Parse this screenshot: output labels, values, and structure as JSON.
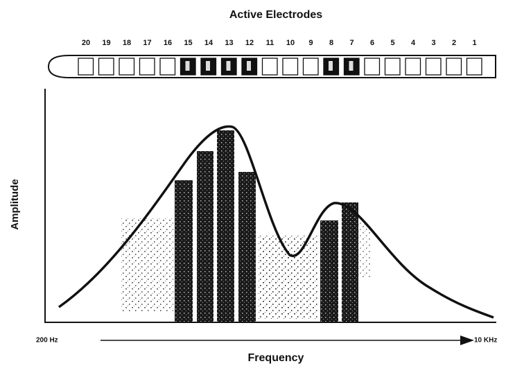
{
  "title": "Active Electrodes",
  "electrodes": [
    "20",
    "19",
    "18",
    "17",
    "16",
    "15",
    "14",
    "13",
    "12",
    "11",
    "10",
    "9",
    "8",
    "7",
    "6",
    "5",
    "4",
    "3",
    "2",
    "1"
  ],
  "y_axis_label": "Amplitude",
  "x_axis_start": "200 Hz",
  "x_axis_end": "10 KHz",
  "x_axis_label": "Frequency"
}
